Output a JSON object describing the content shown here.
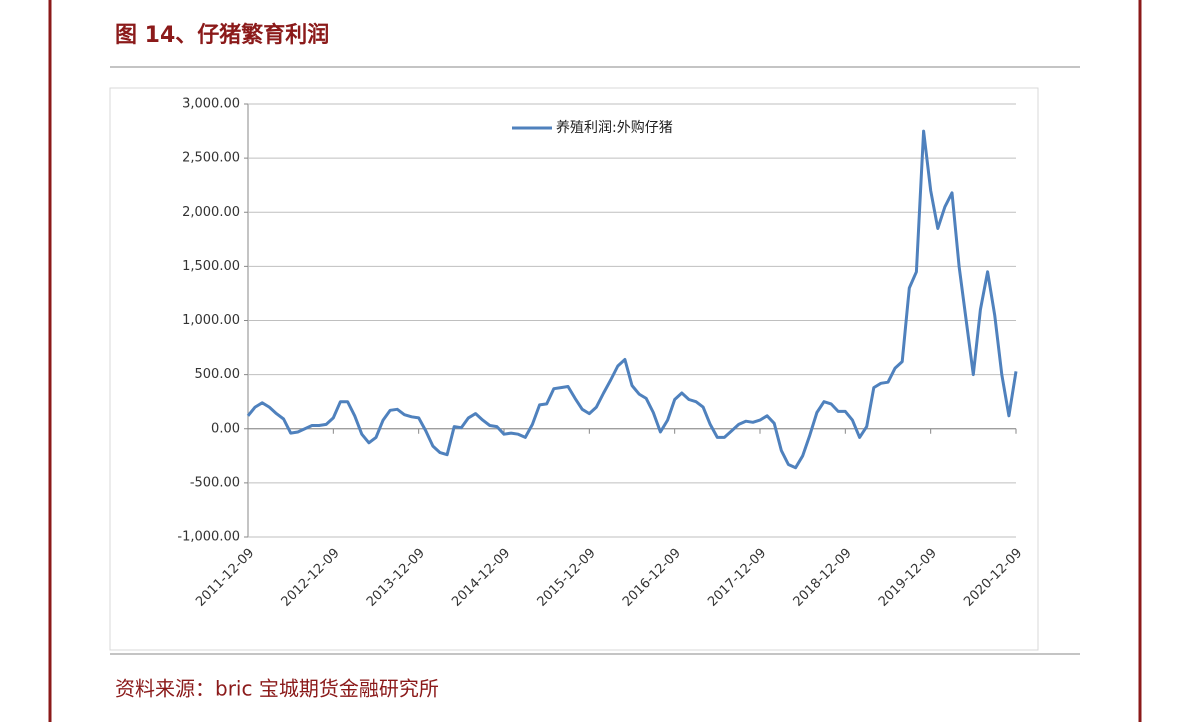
{
  "title": "图 14、仔猪繁育利润",
  "source": "资料来源：bric 宝城期货金融研究所",
  "chart_data": {
    "type": "line",
    "categories": [
      "2011-12-09",
      null,
      null,
      null,
      null,
      null,
      null,
      null,
      null,
      null,
      null,
      null,
      "2012-12-09",
      null,
      null,
      null,
      null,
      null,
      null,
      null,
      null,
      null,
      null,
      null,
      "2013-12-09",
      null,
      null,
      null,
      null,
      null,
      null,
      null,
      null,
      null,
      null,
      null,
      "2014-12-09",
      null,
      null,
      null,
      null,
      null,
      null,
      null,
      null,
      null,
      null,
      null,
      "2015-12-09",
      null,
      null,
      null,
      null,
      null,
      null,
      null,
      null,
      null,
      null,
      null,
      "2016-12-09",
      null,
      null,
      null,
      null,
      null,
      null,
      null,
      null,
      null,
      null,
      null,
      "2017-12-09",
      null,
      null,
      null,
      null,
      null,
      null,
      null,
      null,
      null,
      null,
      null,
      "2018-12-09",
      null,
      null,
      null,
      null,
      null,
      null,
      null,
      null,
      null,
      null,
      null,
      "2019-12-09",
      null,
      null,
      null,
      null,
      null,
      null,
      null,
      null,
      null,
      null,
      null,
      "2020-12-09"
    ],
    "series": [
      {
        "name": "养殖利润:外购仔猪",
        "color": "#4f81bd",
        "values": [
          120,
          200,
          240,
          200,
          140,
          90,
          -40,
          -30,
          0,
          30,
          30,
          40,
          100,
          250,
          250,
          120,
          -50,
          -130,
          -80,
          80,
          170,
          180,
          130,
          110,
          100,
          -20,
          -160,
          -220,
          -240,
          20,
          10,
          100,
          140,
          80,
          30,
          20,
          -50,
          -40,
          -50,
          -80,
          40,
          220,
          230,
          370,
          380,
          390,
          280,
          180,
          140,
          200,
          330,
          450,
          580,
          640,
          400,
          320,
          280,
          150,
          -30,
          80,
          270,
          330,
          270,
          250,
          200,
          40,
          -80,
          -80,
          -20,
          40,
          70,
          60,
          80,
          120,
          50,
          -200,
          -330,
          -360,
          -250,
          -60,
          150,
          250,
          230,
          160,
          160,
          80,
          -80,
          20,
          380,
          420,
          430,
          560,
          620,
          1300,
          1450,
          2750,
          2200,
          1850,
          2050,
          2180,
          1500,
          1000,
          500,
          1100,
          1450,
          1050,
          500,
          120,
          530
        ]
      }
    ],
    "ylim": [
      -1000,
      3000
    ],
    "yticks": [
      {
        "value": -1000,
        "label": "-1,000.00"
      },
      {
        "value": -500,
        "label": "-500.00"
      },
      {
        "value": 0,
        "label": "0.00"
      },
      {
        "value": 500,
        "label": "500.00"
      },
      {
        "value": 1000,
        "label": "1,000.00"
      },
      {
        "value": 1500,
        "label": "1,500.00"
      },
      {
        "value": 2000,
        "label": "2,000.00"
      },
      {
        "value": 2500,
        "label": "2,500.00"
      },
      {
        "value": 3000,
        "label": "3,000.00"
      }
    ],
    "grid": true,
    "legend": "top"
  }
}
